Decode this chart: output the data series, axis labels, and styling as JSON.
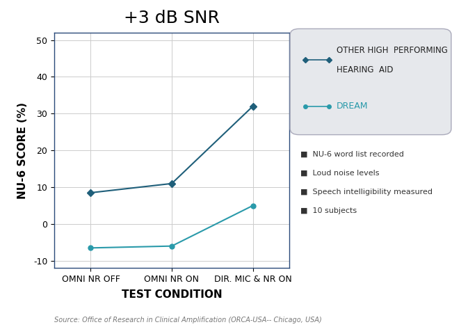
{
  "title": "+3 dB SNR",
  "xlabel": "TEST CONDITION",
  "ylabel": "NU-6 SCORE (%)",
  "x_labels": [
    "OMNI NR OFF",
    "OMNI NR ON",
    "DIR. MIC & NR ON"
  ],
  "x_positions": [
    0,
    1,
    2
  ],
  "series1_y": [
    8.5,
    11,
    32
  ],
  "series1_color": "#1f5f7a",
  "series2_y": [
    -6.5,
    -6,
    5
  ],
  "series2_color": "#2a9aaa",
  "ylim": [
    -12,
    52
  ],
  "yticks": [
    -10,
    0,
    10,
    20,
    30,
    40,
    50
  ],
  "grid_color": "#cccccc",
  "legend_bg": "#e6e8ec",
  "legend_edge": "#aaaabb",
  "note_lines": [
    "NU-6 word list recorded",
    "Loud noise levels",
    "Speech intelligibility measured",
    "10 subjects"
  ],
  "source_text": "Source: Office of Research in Clinical Amplification (ORCA-USA-- Chicago, USA)",
  "title_fontsize": 18,
  "axis_label_fontsize": 11,
  "tick_fontsize": 9,
  "note_fontsize": 8
}
